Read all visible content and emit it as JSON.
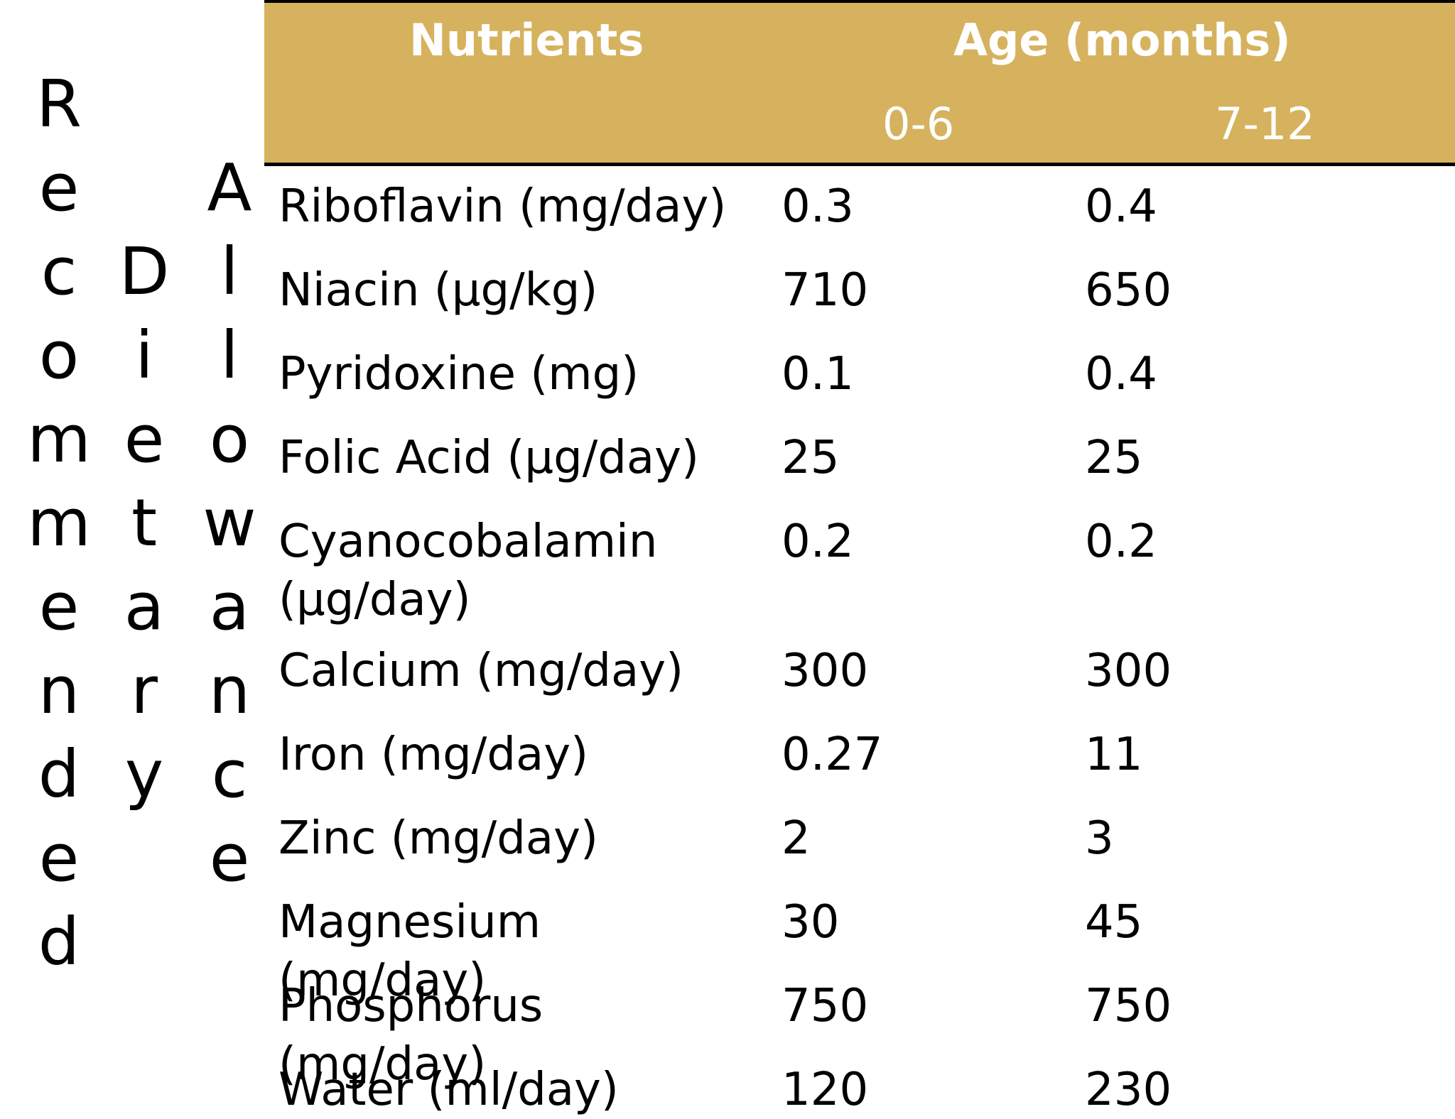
{
  "side_titles": [
    {
      "word": "Recommended",
      "letters": [
        "R",
        "e",
        "c",
        "o",
        "m",
        "m",
        "e",
        "n",
        "d",
        "e",
        "d"
      ]
    },
    {
      "word": "Dietary",
      "letters": [
        "D",
        "i",
        "e",
        "t",
        "a",
        "r",
        "y"
      ]
    },
    {
      "word": "Allowance",
      "letters": [
        "A",
        "l",
        "l",
        "o",
        "w",
        "a",
        "n",
        "c",
        "e"
      ]
    }
  ],
  "table": {
    "header": {
      "nutrients_label": "Nutrients",
      "age_label": "Age (months)",
      "age_groups": [
        "0-6",
        "7-12"
      ]
    },
    "rows": [
      {
        "nutrient": "Riboflavin (mg/day)",
        "v_0_6": "0.3",
        "v_7_12": "0.4"
      },
      {
        "nutrient": "Niacin (µg/kg)",
        "v_0_6": "710",
        "v_7_12": "650"
      },
      {
        "nutrient": "Pyridoxine (mg)",
        "v_0_6": "0.1",
        "v_7_12": "0.4"
      },
      {
        "nutrient": "Folic Acid (µg/day)",
        "v_0_6": "25",
        "v_7_12": "25"
      },
      {
        "nutrient": "Cyanocobalamin (µg/day)",
        "v_0_6": "0.2",
        "v_7_12": "0.2"
      },
      {
        "nutrient": "Calcium (mg/day)",
        "v_0_6": "300",
        "v_7_12": "300"
      },
      {
        "nutrient": "Iron (mg/day)",
        "v_0_6": "0.27",
        "v_7_12": "11"
      },
      {
        "nutrient": "Zinc (mg/day)",
        "v_0_6": "2",
        "v_7_12": "3"
      },
      {
        "nutrient": "Magnesium (mg/day)",
        "v_0_6": "30",
        "v_7_12": "45"
      },
      {
        "nutrient": "Phosphorus (mg/day)",
        "v_0_6": "750",
        "v_7_12": "750"
      },
      {
        "nutrient": "Water (ml/day)",
        "v_0_6": "120",
        "v_7_12": "230"
      }
    ]
  },
  "colors": {
    "header_bg": "#d6b25e",
    "header_text": "#ffffff",
    "body_text": "#000000"
  }
}
